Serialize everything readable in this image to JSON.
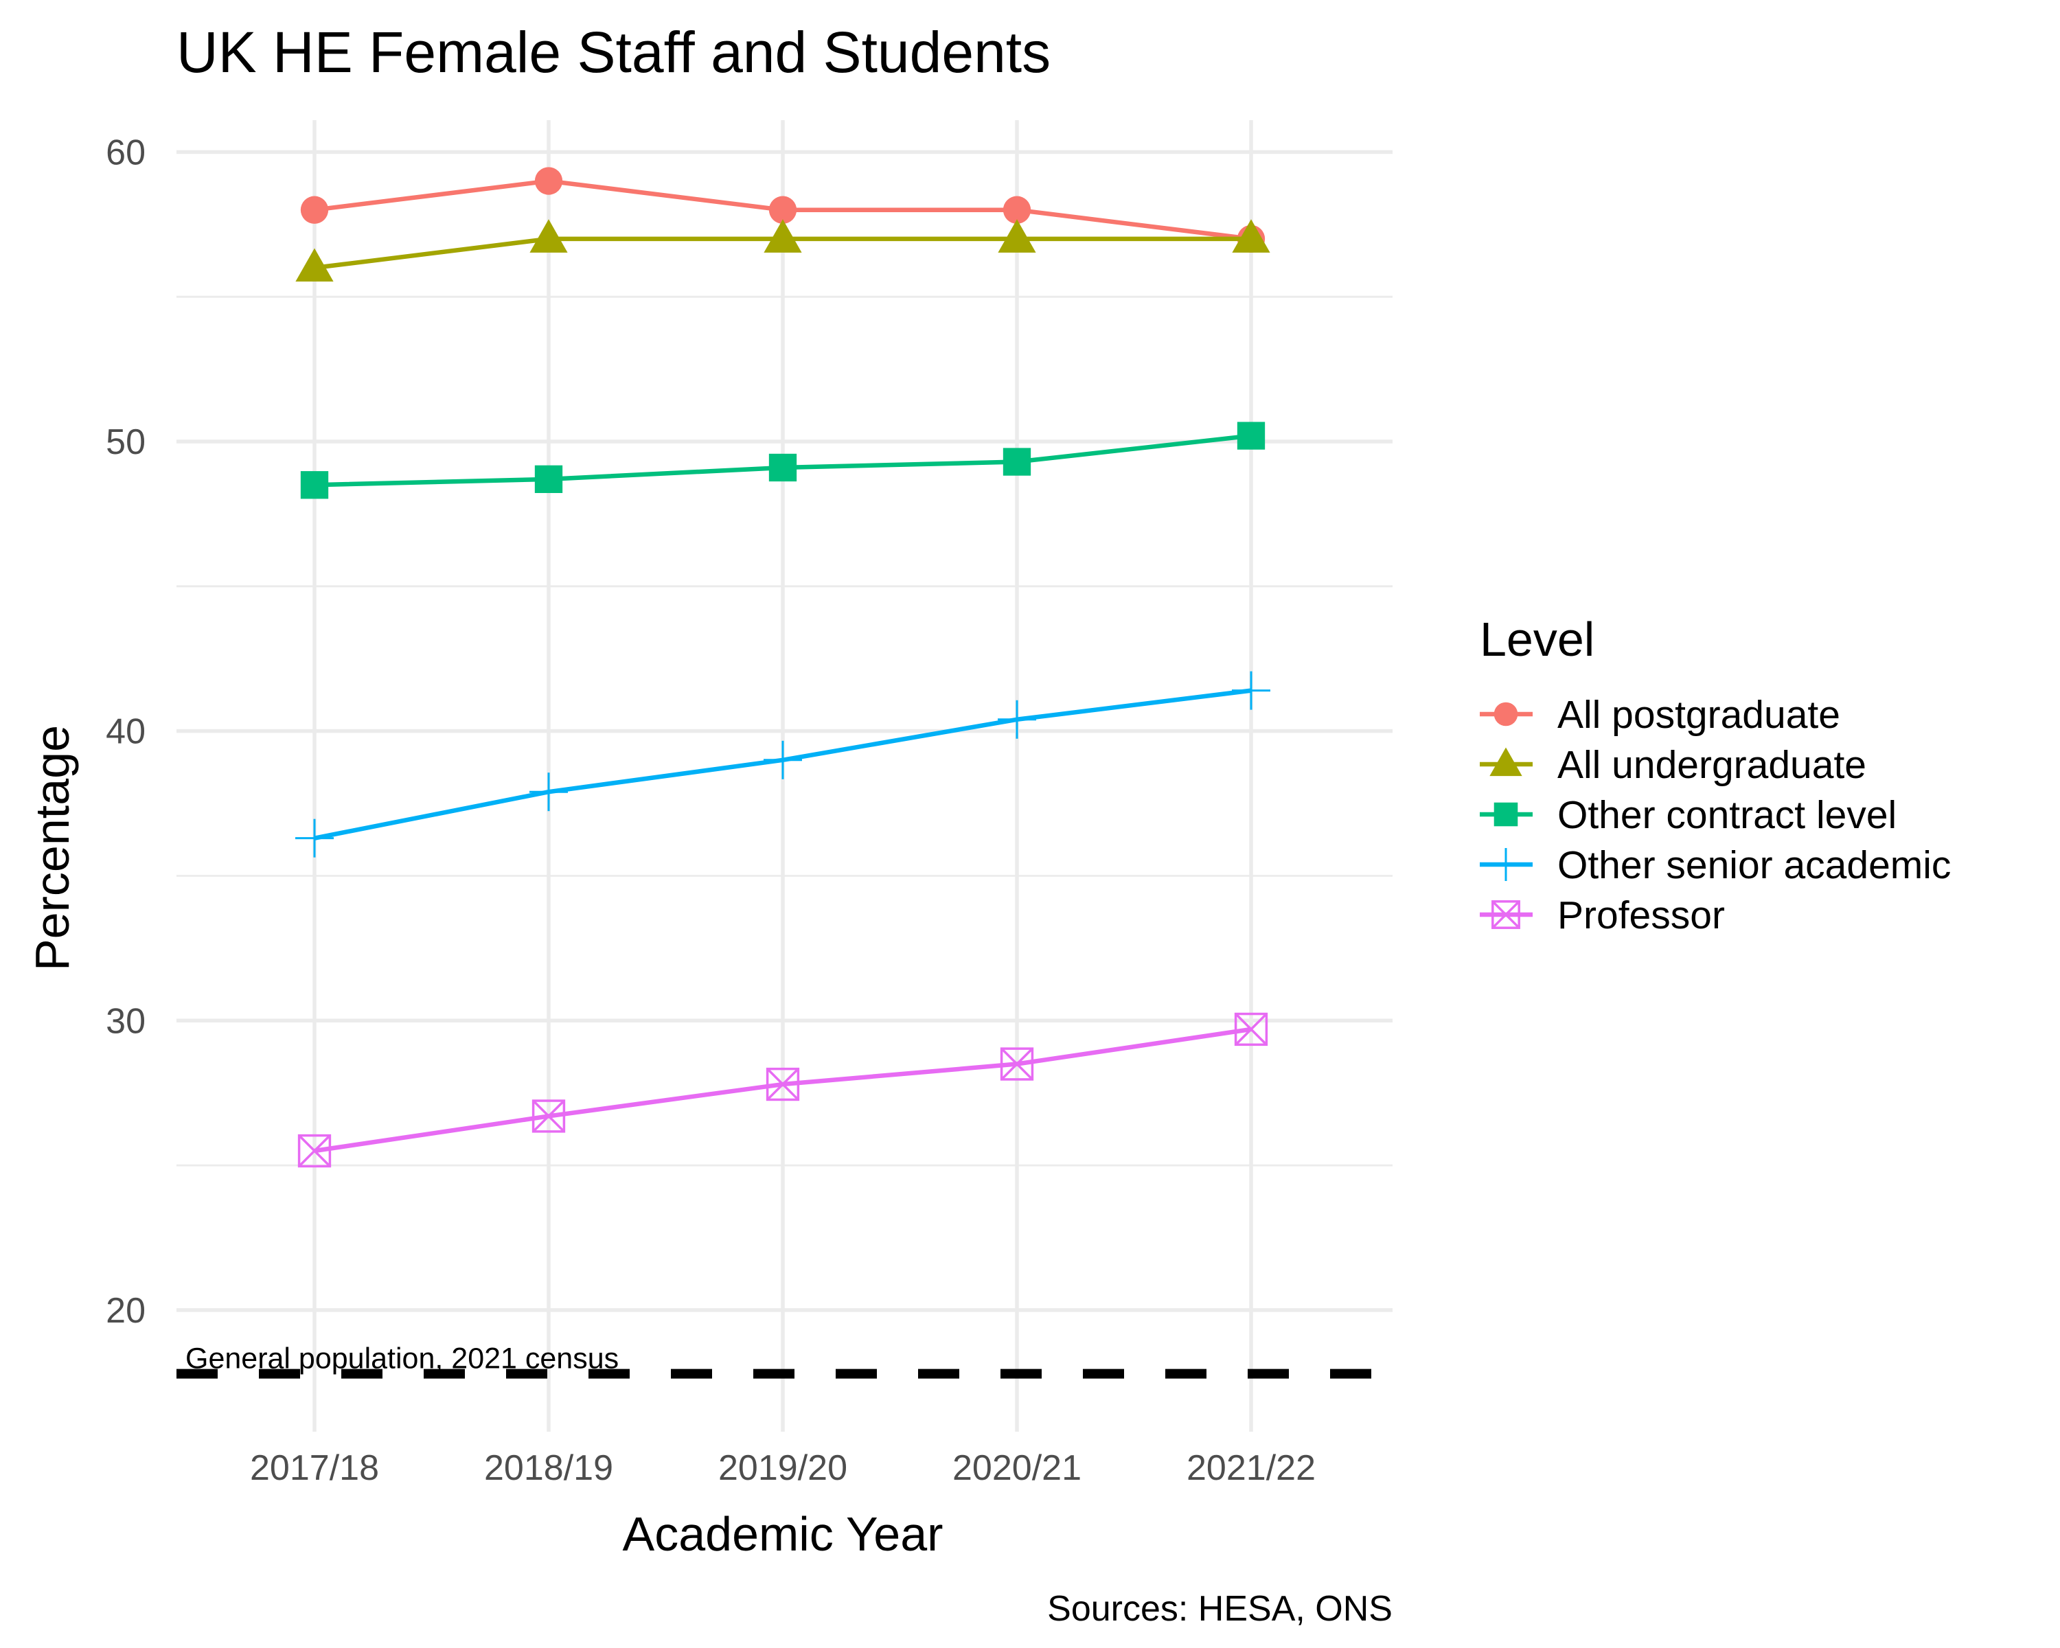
{
  "chart_data": {
    "type": "line",
    "title": "UK HE Female Staff and Students",
    "xlabel": "Academic Year",
    "ylabel": "Percentage",
    "caption": "Sources: HESA, ONS",
    "categories": [
      "2017/18",
      "2018/19",
      "2019/20",
      "2020/21",
      "2021/22"
    ],
    "ylim": [
      15.8,
      61.1
    ],
    "y_ticks": [
      20,
      30,
      40,
      50,
      60
    ],
    "grid": true,
    "legend": {
      "title": "Level",
      "position": "right"
    },
    "series": [
      {
        "name": "All postgraduate",
        "color": "#F8766D",
        "marker": "circle",
        "values": [
          58,
          59,
          58,
          58,
          57
        ]
      },
      {
        "name": "All undergraduate",
        "color": "#A3A500",
        "marker": "triangle",
        "values": [
          56,
          57,
          57,
          57,
          57
        ]
      },
      {
        "name": "Other contract level",
        "color": "#00BF7D",
        "marker": "square",
        "values": [
          48.5,
          48.7,
          49.1,
          49.3,
          50.2
        ]
      },
      {
        "name": "Other senior academic",
        "color": "#00B0F6",
        "marker": "plus",
        "values": [
          36.3,
          37.9,
          39.0,
          40.4,
          41.4
        ]
      },
      {
        "name": "Professor",
        "color": "#E76BF3",
        "marker": "square-cross",
        "values": [
          25.5,
          26.7,
          27.8,
          28.5,
          29.7
        ]
      }
    ],
    "reference_line": {
      "label": "General population, 2021 census",
      "value": 17.8,
      "color": "#000000",
      "style": "dashed"
    }
  }
}
